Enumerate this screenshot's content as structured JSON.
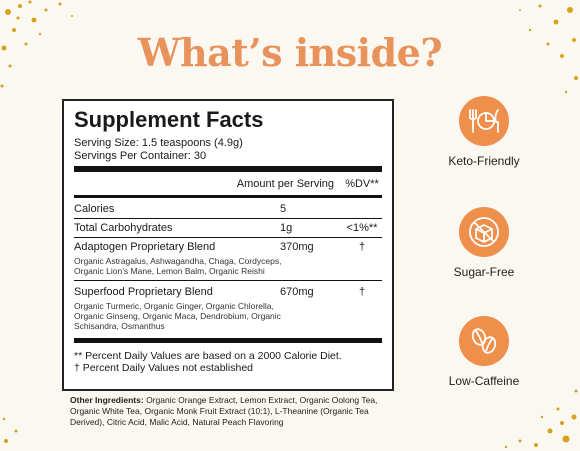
{
  "header": {
    "title": "What’s inside?"
  },
  "facts": {
    "heading": "Supplement Facts",
    "serving_size": "Serving Size: 1.5 teaspoons (4.9g)",
    "servings_per_container": "Servings Per Container: 30",
    "col_amount": "Amount per Serving",
    "col_dv": "%DV**",
    "rows": [
      {
        "name": "Calories",
        "amount": "5",
        "dv": ""
      },
      {
        "name": "Total Carbohydrates",
        "amount": "1g",
        "dv": "<1%**"
      },
      {
        "name": "Adaptogen Proprietary Blend",
        "amount": "370mg",
        "dv": "†",
        "detail": "Organic Astragalus, Ashwagandha, Chaga, Cordyceps, Organic Lion’s Mane, Lemon Balm, Organic Reishi"
      },
      {
        "name": "Superfood Proprietary Blend",
        "amount": "670mg",
        "dv": "†",
        "detail": "Organic Turmeric, Organic Ginger, Organic Chlorella, Organic Ginseng, Organic Maca, Dendrobium, Organic Schisandra, Osmanthus"
      }
    ],
    "footnote_1": "** Percent Daily Values are based on a 2000 Calorie Diet.",
    "footnote_2": "† Percent Daily Values not established"
  },
  "ingredients": {
    "label": "Other Ingredients:",
    "text": "Organic Orange Extract, Lemon Extract, Organic Oolong Tea, Organic White Tea, Organic Monk Fruit Extract (10:1), L-Theanine (Organic Tea Derived), Citric Acid, Malic Acid, Natural Peach Flavoring"
  },
  "badges": [
    {
      "label": "Keto-Friendly",
      "icon": "plate-fork-knife-icon"
    },
    {
      "label": "Sugar-Free",
      "icon": "no-sugar-cube-icon"
    },
    {
      "label": "Low-Caffeine",
      "icon": "coffee-bean-icon"
    }
  ],
  "colors": {
    "accent": "#ee8f4c",
    "title": "#e9935c",
    "speckle": "#d9a21c"
  }
}
